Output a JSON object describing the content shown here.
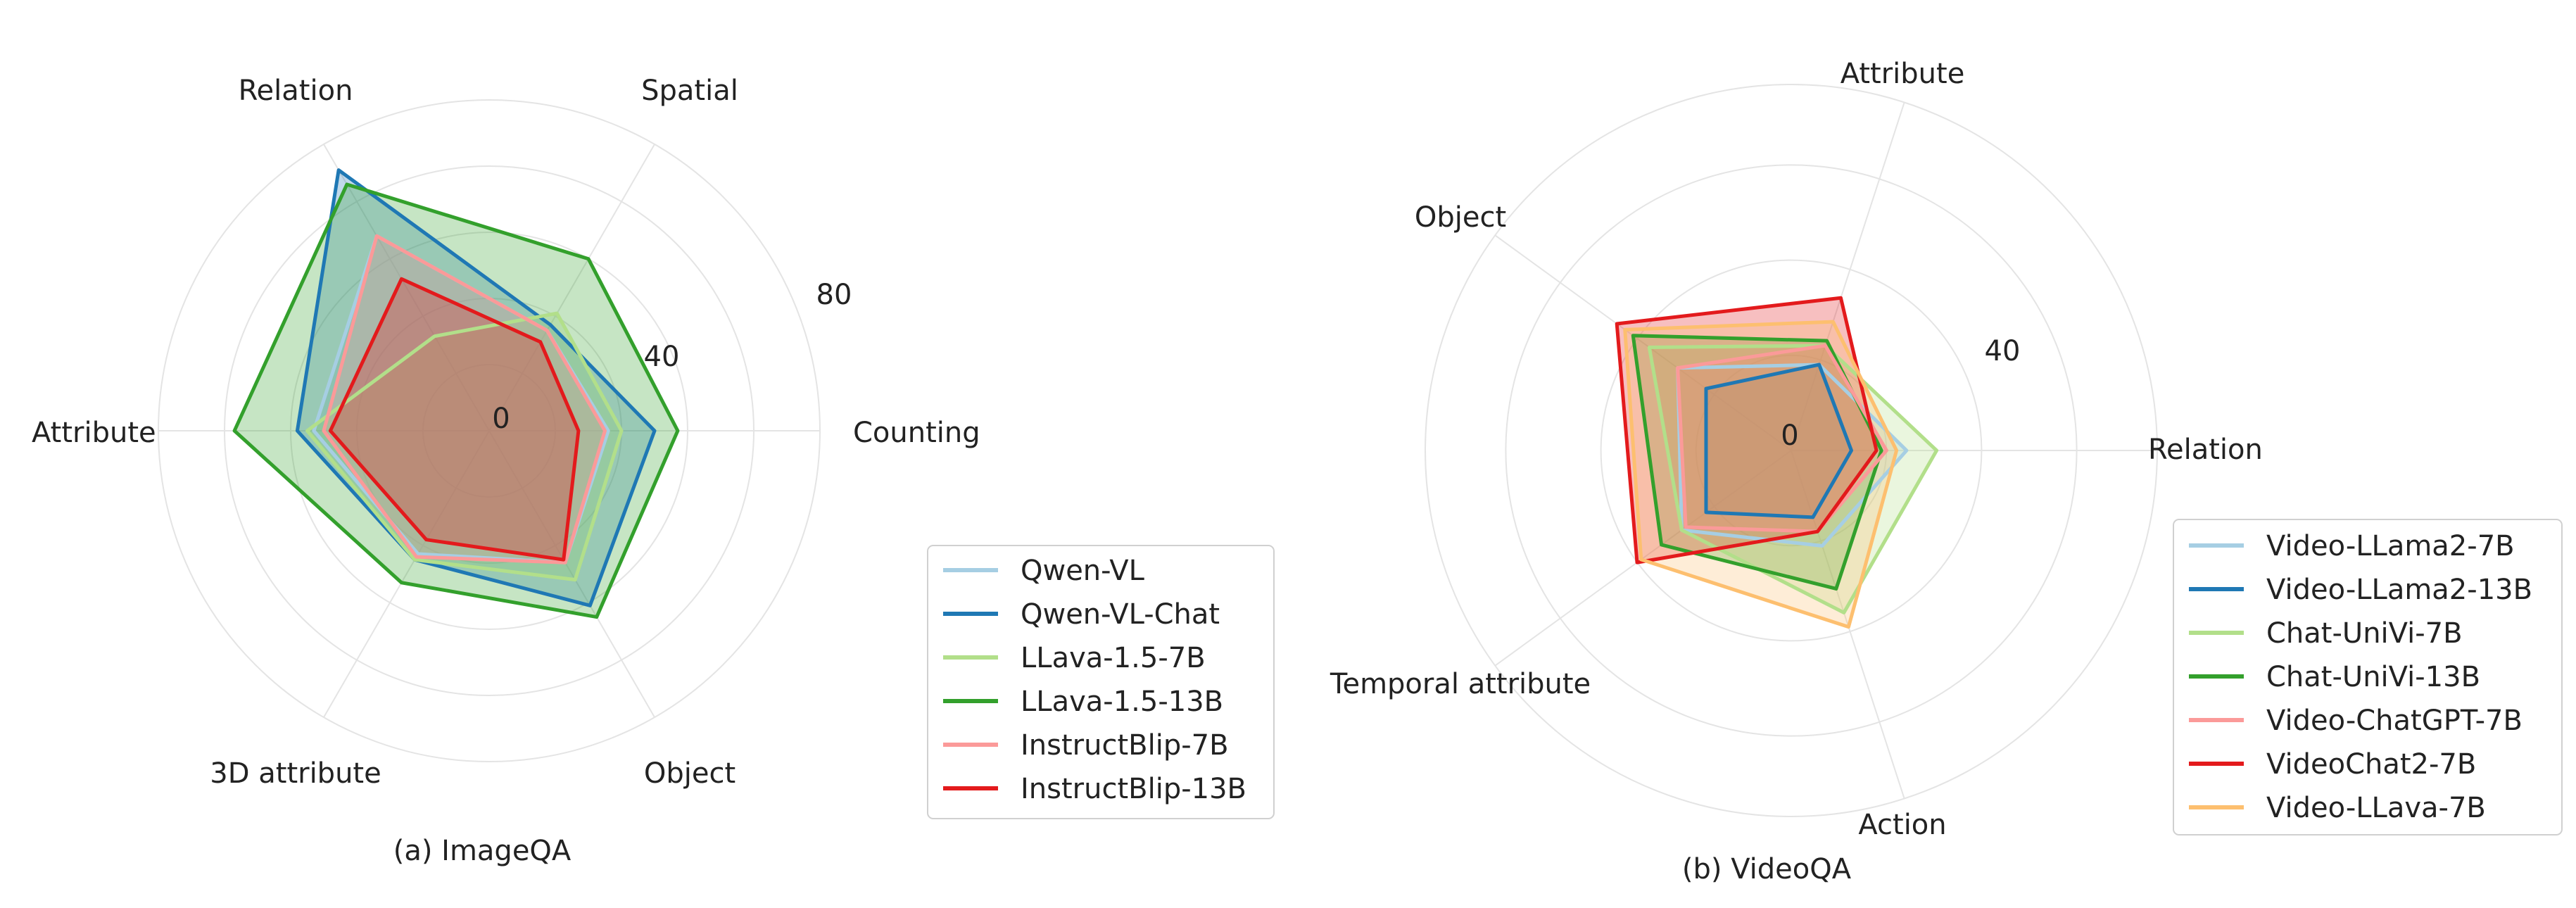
{
  "chart_data": [
    {
      "type": "radar",
      "caption": "(a) ImageQA",
      "axes": [
        "Counting",
        "Spatial",
        "Relation",
        "Attribute",
        "3D attribute",
        "Object"
      ],
      "tick_labels": [
        "0",
        "40",
        "80"
      ],
      "rmax": 100,
      "legend_location": "right",
      "series": [
        {
          "name": "Qwen-VL",
          "color": "#a6cee3",
          "values": [
            36,
            35,
            68,
            53,
            43,
            46
          ]
        },
        {
          "name": "Qwen-VL-Chat",
          "color": "#1f78b4",
          "values": [
            50,
            37,
            91,
            58,
            45,
            61
          ]
        },
        {
          "name": "LLava-1.5-7B",
          "color": "#b2df8a",
          "values": [
            40,
            41,
            33,
            55,
            45,
            52
          ]
        },
        {
          "name": "LLava-1.5-13B",
          "color": "#33a02c",
          "values": [
            57,
            60,
            86,
            77,
            53,
            65
          ]
        },
        {
          "name": "InstructBlip-7B",
          "color": "#fb9a99",
          "values": [
            35,
            35,
            68,
            50,
            44,
            46
          ]
        },
        {
          "name": "InstructBlip-13B",
          "color": "#e31a1c",
          "values": [
            27,
            31,
            53,
            48,
            38,
            45
          ]
        }
      ]
    },
    {
      "type": "radar",
      "caption": "(b) VideoQA",
      "axes": [
        "Relation",
        "Attribute",
        "Object",
        "Temporal attribute",
        "Action"
      ],
      "tick_labels": [
        "0",
        "40"
      ],
      "rmax": 73,
      "legend_location": "right",
      "series": [
        {
          "name": "Video-LLama2-7B",
          "color": "#a6cee3",
          "values": [
            23,
            18,
            28,
            27,
            20
          ]
        },
        {
          "name": "Video-LLama2-13B",
          "color": "#1f78b4",
          "values": [
            12,
            18,
            21,
            21,
            14
          ]
        },
        {
          "name": "Chat-UniVi-7B",
          "color": "#b2df8a",
          "values": [
            29,
            22,
            35,
            27,
            34
          ]
        },
        {
          "name": "Chat-UniVi-13B",
          "color": "#33a02c",
          "values": [
            18,
            23,
            39,
            32,
            29
          ]
        },
        {
          "name": "Video-ChatGPT-7B",
          "color": "#fb9a99",
          "values": [
            19,
            22,
            28,
            26,
            17
          ]
        },
        {
          "name": "VideoChat2-7B",
          "color": "#e31a1c",
          "values": [
            17,
            32,
            43,
            38,
            17
          ]
        },
        {
          "name": "Video-LLava-7B",
          "color": "#fdbf6f",
          "values": [
            21,
            27,
            41,
            37,
            37
          ]
        }
      ]
    }
  ]
}
